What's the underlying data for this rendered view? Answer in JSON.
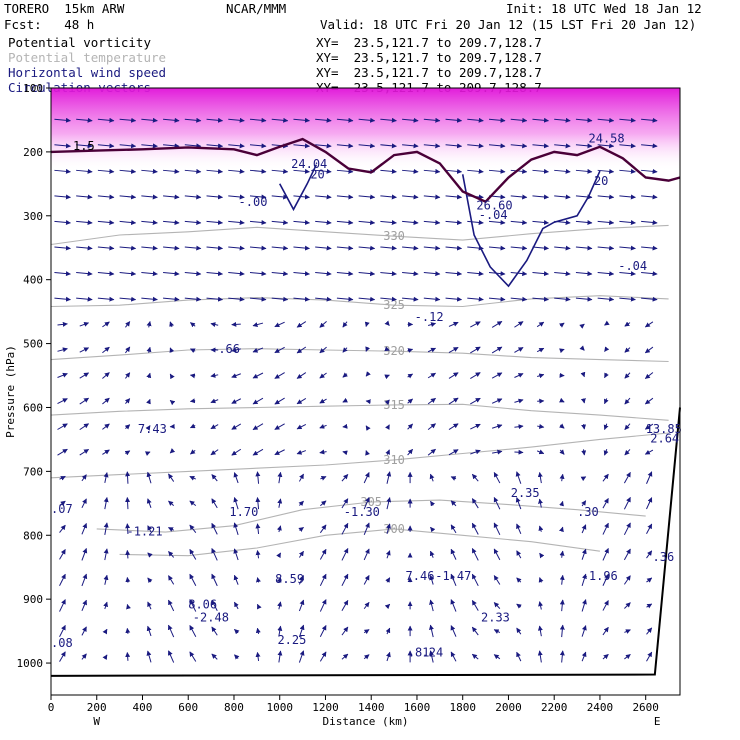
{
  "header": {
    "model": "TORERO  15km ARW",
    "center": "NCAR/MMM",
    "init": "Init: 18 UTC Wed 18 Jan 12",
    "fcst": "Fcst:   48 h",
    "valid": "Valid: 18 UTC Fri 20 Jan 12 (15 LST Fri 20 Jan 12)"
  },
  "legend": [
    {
      "name": "Potential vorticity",
      "xy": "XY=  23.5,121.7 to 209.7,128.7",
      "color": "#000000"
    },
    {
      "name": "Potential temperature",
      "xy": "XY=  23.5,121.7 to 209.7,128.7",
      "color": "#b4b4b4"
    },
    {
      "name": "Horizontal wind speed",
      "xy": "XY=  23.5,121.7 to 209.7,128.7",
      "color": "#1a1a80"
    },
    {
      "name": "Circulation vectors",
      "xy": "XY=  23.5,121.7 to 209.7,128.7",
      "color": "#1a1a80"
    }
  ],
  "chart_data": {
    "type": "cross-section",
    "xlabel": "Distance (km)",
    "ylabel": "Pressure (hPa)",
    "xlim": [
      0,
      2750
    ],
    "ylim": [
      1050,
      100
    ],
    "x_ticks": [
      "0",
      "200",
      "400",
      "600",
      "800",
      "1000",
      "1200",
      "1400",
      "1600",
      "1800",
      "2000",
      "2200",
      "2400",
      "2600"
    ],
    "y_ticks": [
      "100",
      "200",
      "300",
      "400",
      "500",
      "600",
      "700",
      "800",
      "900",
      "1000"
    ],
    "x_start_label": "W",
    "x_end_label": "E",
    "theta_contours": [
      {
        "value": 310,
        "points": [
          [
            0,
            710
          ],
          [
            300,
            705
          ],
          [
            600,
            700
          ],
          [
            900,
            695
          ],
          [
            1200,
            690
          ],
          [
            1500,
            682
          ],
          [
            1800,
            672
          ],
          [
            2100,
            662
          ],
          [
            2400,
            650
          ],
          [
            2700,
            640
          ]
        ]
      },
      {
        "value": 315,
        "points": [
          [
            0,
            612
          ],
          [
            300,
            606
          ],
          [
            600,
            602
          ],
          [
            900,
            600
          ],
          [
            1200,
            598
          ],
          [
            1500,
            596
          ],
          [
            1800,
            595
          ],
          [
            2100,
            605
          ],
          [
            2400,
            612
          ],
          [
            2700,
            620
          ]
        ]
      },
      {
        "value": 320,
        "points": [
          [
            0,
            525
          ],
          [
            300,
            518
          ],
          [
            600,
            510
          ],
          [
            900,
            508
          ],
          [
            1200,
            510
          ],
          [
            1500,
            512
          ],
          [
            1800,
            515
          ],
          [
            2100,
            522
          ],
          [
            2400,
            525
          ],
          [
            2700,
            528
          ]
        ]
      },
      {
        "value": 325,
        "points": [
          [
            0,
            442
          ],
          [
            300,
            440
          ],
          [
            600,
            432
          ],
          [
            900,
            428
          ],
          [
            1200,
            432
          ],
          [
            1500,
            440
          ],
          [
            1800,
            442
          ],
          [
            2100,
            430
          ],
          [
            2400,
            425
          ],
          [
            2700,
            430
          ]
        ]
      },
      {
        "value": 330,
        "points": [
          [
            0,
            345
          ],
          [
            300,
            330
          ],
          [
            600,
            325
          ],
          [
            900,
            318
          ],
          [
            1200,
            325
          ],
          [
            1500,
            332
          ],
          [
            1800,
            338
          ],
          [
            2100,
            328
          ],
          [
            2400,
            320
          ],
          [
            2700,
            315
          ]
        ]
      },
      {
        "value": 305,
        "points": [
          [
            200,
            790
          ],
          [
            500,
            795
          ],
          [
            800,
            785
          ],
          [
            1100,
            760
          ],
          [
            1400,
            748
          ],
          [
            1700,
            745
          ],
          [
            2000,
            752
          ],
          [
            2300,
            760
          ],
          [
            2600,
            770
          ]
        ]
      },
      {
        "value": 300,
        "points": [
          [
            300,
            830
          ],
          [
            600,
            832
          ],
          [
            900,
            820
          ],
          [
            1200,
            800
          ],
          [
            1500,
            790
          ],
          [
            1800,
            800
          ],
          [
            2100,
            810
          ],
          [
            2400,
            825
          ]
        ]
      }
    ],
    "pv_contours": [
      {
        "value": 1.5,
        "points": [
          [
            0,
            200
          ],
          [
            200,
            198
          ],
          [
            400,
            196
          ],
          [
            600,
            193
          ],
          [
            800,
            196
          ],
          [
            900,
            205
          ],
          [
            1000,
            192
          ],
          [
            1100,
            180
          ],
          [
            1200,
            200
          ],
          [
            1300,
            226
          ],
          [
            1400,
            232
          ],
          [
            1500,
            205
          ],
          [
            1600,
            200
          ],
          [
            1700,
            218
          ],
          [
            1800,
            262
          ],
          [
            1900,
            278
          ],
          [
            2000,
            240
          ],
          [
            2100,
            212
          ],
          [
            2200,
            200
          ],
          [
            2300,
            205
          ],
          [
            2400,
            192
          ],
          [
            2500,
            210
          ],
          [
            2600,
            240
          ],
          [
            2700,
            245
          ],
          [
            2750,
            240
          ]
        ]
      }
    ],
    "wind_speed_contours": [
      {
        "value": 20,
        "points": [
          [
            1000,
            250
          ],
          [
            1060,
            290
          ],
          [
            1120,
            250
          ],
          [
            1160,
            220
          ]
        ]
      },
      {
        "value": 20,
        "points": [
          [
            1800,
            235
          ],
          [
            1850,
            330
          ],
          [
            1920,
            380
          ],
          [
            2000,
            410
          ],
          [
            2080,
            370
          ],
          [
            2150,
            320
          ],
          [
            2200,
            310
          ],
          [
            2300,
            300
          ],
          [
            2350,
            270
          ],
          [
            2400,
            230
          ]
        ]
      }
    ],
    "labels": [
      {
        "text": "-.00",
        "x": 820,
        "y": 285
      },
      {
        "text": "-.12",
        "x": 1590,
        "y": 465
      },
      {
        "text": "-.04",
        "x": 2480,
        "y": 385
      },
      {
        "text": "-.66",
        "x": 700,
        "y": 515
      },
      {
        "text": "7.43",
        "x": 380,
        "y": 640
      },
      {
        "text": "1.70",
        "x": 780,
        "y": 770
      },
      {
        "text": "-1.30",
        "x": 1280,
        "y": 770
      },
      {
        "text": "2.35",
        "x": 2010,
        "y": 740
      },
      {
        "text": ".30",
        "x": 2300,
        "y": 770
      },
      {
        "text": "-1.21",
        "x": 330,
        "y": 800
      },
      {
        "text": "8.59",
        "x": 980,
        "y": 875
      },
      {
        "text": "7.46",
        "x": 1550,
        "y": 870
      },
      {
        "text": "-1.47",
        "x": 1680,
        "y": 870
      },
      {
        "text": "-1.96",
        "x": 2320,
        "y": 870
      },
      {
        "text": "8.06",
        "x": 600,
        "y": 915
      },
      {
        "text": "-2.48",
        "x": 620,
        "y": 935
      },
      {
        "text": "2.25",
        "x": 990,
        "y": 970
      },
      {
        "text": "2.33",
        "x": 1880,
        "y": 935
      },
      {
        "text": ".81",
        "x": 1560,
        "y": 990
      },
      {
        "text": ".24",
        "x": 1620,
        "y": 990
      },
      {
        "text": "24.58",
        "x": 2350,
        "y": 185
      },
      {
        "text": "24.04",
        "x": 1050,
        "y": 225
      },
      {
        "text": "26.60",
        "x": 1860,
        "y": 290
      },
      {
        "text": "-.04",
        "x": 1870,
        "y": 305
      },
      {
        "text": "13.85",
        "x": 2600,
        "y": 640
      },
      {
        "text": "2.64",
        "x": 2620,
        "y": 655
      },
      {
        "text": ".36",
        "x": 2630,
        "y": 840
      },
      {
        "text": ".07",
        "x": 0,
        "y": 765
      },
      {
        "text": ".08",
        "x": 0,
        "y": 975
      }
    ]
  }
}
